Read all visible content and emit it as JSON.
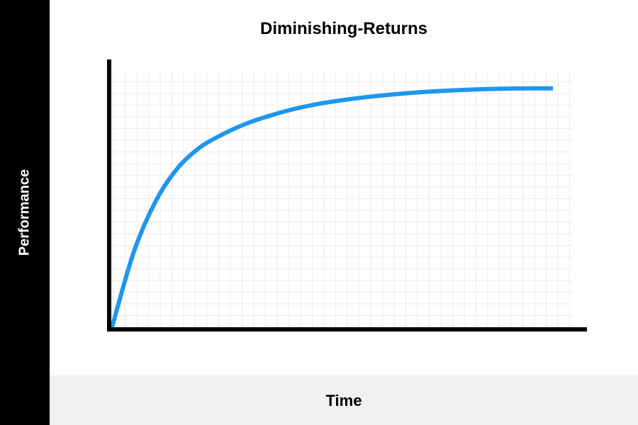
{
  "chart_data": {
    "type": "line",
    "title": "Diminishing-Returns",
    "xlabel": "Time",
    "ylabel": "Performance",
    "xlim": [
      0,
      10
    ],
    "ylim": [
      0,
      10
    ],
    "grid": true,
    "series": [
      {
        "color": "#1e96f0",
        "x": [
          0,
          0.5,
          1,
          1.5,
          2,
          2.5,
          3,
          3.5,
          4,
          4.5,
          5,
          5.5,
          6,
          6.5,
          7,
          7.5,
          8,
          8.5,
          9,
          9.5,
          10
        ],
        "y": [
          0,
          3.0,
          5.0,
          6.3,
          7.1,
          7.6,
          8.0,
          8.3,
          8.55,
          8.75,
          8.9,
          9.02,
          9.12,
          9.2,
          9.27,
          9.32,
          9.36,
          9.39,
          9.41,
          9.42,
          9.42
        ]
      }
    ]
  },
  "colors": {
    "side_band": "#000000",
    "bottom_band": "#f0f1f2",
    "axis": "#000000",
    "grid": "#ebebeb",
    "line": "#1e96f0"
  }
}
